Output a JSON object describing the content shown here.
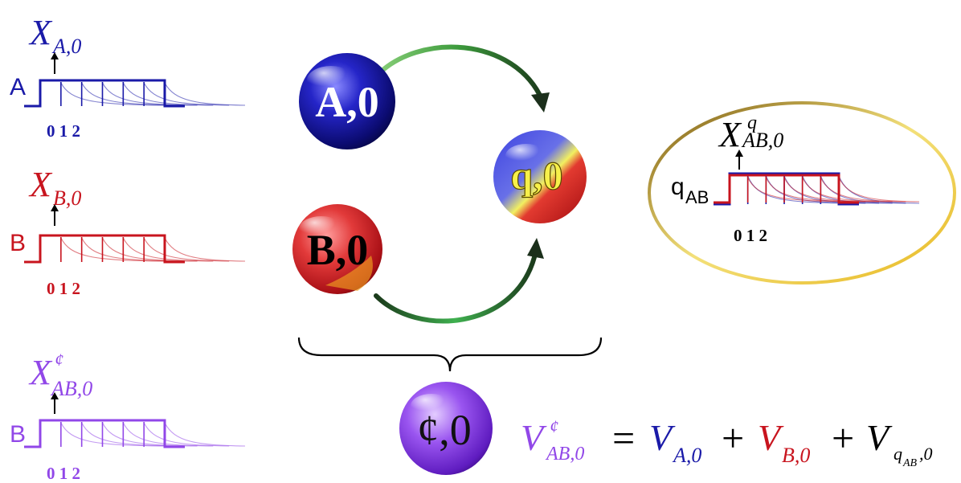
{
  "colors": {
    "blue": "#1a1aa8",
    "red": "#c8141e",
    "purple": "#9147e8",
    "gold": "#e8c832",
    "arrow_green": "#2f7d2f",
    "black": "#000000"
  },
  "panels": {
    "A": {
      "var": "X",
      "sub": "A,0",
      "sup": "",
      "label": "A",
      "ticks": [
        "0",
        "1",
        "2"
      ],
      "color_key": "blue"
    },
    "B": {
      "var": "X",
      "sub": "B,0",
      "sup": "",
      "label": "B",
      "ticks": [
        "0",
        "1",
        "2"
      ],
      "color_key": "red"
    },
    "C": {
      "var": "X",
      "sub": "AB,0",
      "sup": "¢",
      "label": "B",
      "ticks": [
        "0",
        "1",
        "2"
      ],
      "color_key": "purple"
    },
    "Q": {
      "var": "X",
      "sub": "AB,0",
      "sup": "q",
      "label": "q",
      "label_sub": "AB",
      "ticks": [
        "0 1 2"
      ]
    }
  },
  "spheres": {
    "A": {
      "text": "A,0",
      "icon": "blue-sphere"
    },
    "B": {
      "text": "B,0",
      "icon": "red-sphere"
    },
    "q": {
      "text": "q,0",
      "icon": "blue-red-yellow-sphere"
    },
    "c": {
      "text": "¢,0",
      "icon": "purple-sphere"
    }
  },
  "equation": {
    "lhs_var": "V",
    "lhs_sup": "¢",
    "lhs_sub": "AB,0",
    "eq": "=",
    "t1_var": "V",
    "t1_sub": "A,0",
    "plus1": "+",
    "t2_var": "V",
    "t2_sub": "B,0",
    "plus2": "+",
    "t3_var": "V",
    "t3_sub_q": "q",
    "t3_sub_q_sub": "AB",
    "t3_sub_tail": ",0"
  }
}
